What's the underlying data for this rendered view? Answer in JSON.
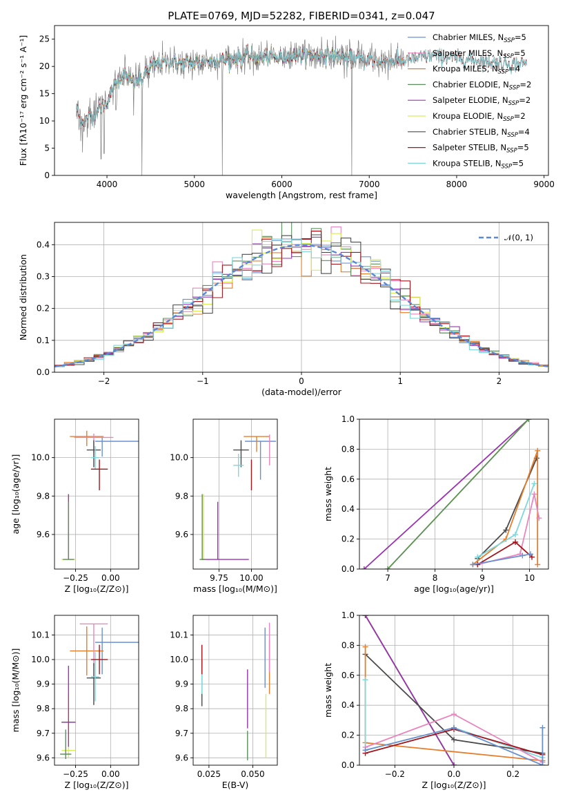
{
  "figure_title": "PLATE=0769, MJD=52282, FIBERID=0341, z=0.047",
  "chart_data": [
    {
      "id": "spectrum",
      "type": "line",
      "xlabel": "wavelength [Angstrom, rest frame]",
      "ylabel": "Flux [fλ10⁻¹⁷ erg cm⁻² s⁻¹ A⁻¹]",
      "xlim": [
        3400,
        9050
      ],
      "ylim": [
        0,
        27.5
      ],
      "xticks": [
        4000,
        5000,
        6000,
        7000,
        8000,
        9000
      ],
      "yticks": [
        0,
        5,
        10,
        15,
        20,
        25
      ],
      "grid": false,
      "legend_position": "top-right",
      "series": [
        {
          "name": "Chabrier MILES, N",
          "sub": "SSP",
          "tail": "=5",
          "color": "#6a8fcf",
          "range": [
            3650,
            7400
          ]
        },
        {
          "name": "Salpeter MILES, N",
          "sub": "SSP",
          "tail": "=5",
          "color": "#e885be",
          "range": [
            3650,
            7400
          ]
        },
        {
          "name": "Kroupa MILES, N",
          "sub": "SSP",
          "tail": "=4",
          "color": "#e57e2c",
          "range": [
            3650,
            7430
          ]
        },
        {
          "name": "Chabrier ELODIE, N",
          "sub": "SSP",
          "tail": "=2",
          "color": "#5b8f5b",
          "range": [
            3900,
            6800
          ]
        },
        {
          "name": "Salpeter ELODIE, N",
          "sub": "SSP",
          "tail": "=2",
          "color": "#9a33b0",
          "range": [
            3900,
            6800
          ]
        },
        {
          "name": "Kroupa ELODIE, N",
          "sub": "SSP",
          "tail": "=2",
          "color": "#d8ec5a",
          "range": [
            3900,
            6800
          ]
        },
        {
          "name": "Chabrier STELIB, N",
          "sub": "SSP",
          "tail": "=4",
          "color": "#4a4a4a",
          "range": [
            3650,
            8800
          ]
        },
        {
          "name": "Salpeter STELIB, N",
          "sub": "SSP",
          "tail": "=5",
          "color": "#a3141a",
          "range": [
            3650,
            8800
          ]
        },
        {
          "name": "Kroupa STELIB, N",
          "sub": "SSP",
          "tail": "=5",
          "color": "#7fd7dc",
          "range": [
            3650,
            8800
          ]
        }
      ],
      "data_color": "#808080",
      "continuum": {
        "x": [
          3650,
          3700,
          3800,
          3900,
          4000,
          4100,
          4200,
          4300,
          4400,
          4500,
          4700,
          4900,
          5100,
          5300,
          5600,
          5900,
          6200,
          6500,
          6800,
          7100,
          7400,
          7700,
          8000,
          8300,
          8600,
          8800
        ],
        "y": [
          12.5,
          10,
          10.5,
          12,
          13.5,
          17,
          18.5,
          17,
          17.5,
          20,
          21,
          20.5,
          21,
          21,
          22,
          21.5,
          22,
          22,
          21.5,
          21,
          21,
          22,
          21.5,
          21,
          20.5,
          20.5
        ]
      },
      "absorption_lines": [
        {
          "x": 3933,
          "y": 3
        },
        {
          "x": 3968,
          "y": 4
        },
        {
          "x": 4102,
          "y": 12
        },
        {
          "x": 4304,
          "y": 11
        },
        {
          "x": 4401,
          "y": 0
        },
        {
          "x": 5319,
          "y": 0
        },
        {
          "x": 6800,
          "y": 0
        },
        {
          "x": 7430,
          "y": 0
        }
      ]
    },
    {
      "id": "residuals",
      "type": "step",
      "xlabel": "(data-model)/error",
      "ylabel": "Normed distribution",
      "xlim": [
        -2.5,
        2.5
      ],
      "ylim": [
        0,
        0.47
      ],
      "xticks": [
        -2,
        -1,
        0,
        1,
        2
      ],
      "yticks": [
        0.0,
        0.1,
        0.2,
        0.3,
        0.4
      ],
      "grid": true,
      "legend_position": "top-right",
      "reference": {
        "name": "𝒩(0, 1)",
        "color": "#5b88d6"
      },
      "bin_width": 0.1
    },
    {
      "id": "age_vs_Z",
      "type": "errorbar",
      "xlabel": "Z [log₁₀(Z/Z⊙)]",
      "ylabel": "age  [log₁₀(age/yr)]",
      "xlim": [
        -0.4,
        0.2
      ],
      "ylim": [
        9.42,
        10.2
      ],
      "xticks": [
        -0.25,
        0.0
      ],
      "xtick_labels": [
        "−0.25",
        "0.00"
      ],
      "yticks": [
        9.6,
        9.8,
        10.0
      ],
      "grid": true,
      "points": [
        {
          "color": "#6a8fcf",
          "x": -0.06,
          "xerr": [
            0.05,
            0.26
          ],
          "y": 10.085,
          "yerr": [
            0.08,
            0.02
          ]
        },
        {
          "color": "#e57e2c",
          "x": -0.17,
          "xerr": [
            0.12,
            0.12
          ],
          "y": 10.11,
          "yerr": [
            0.05,
            0.03
          ]
        },
        {
          "color": "#e885be",
          "x": -0.12,
          "xerr": [
            0.14,
            0.14
          ],
          "y": 10.105,
          "yerr": [
            0.08,
            0.02
          ]
        },
        {
          "color": "#4a4a4a",
          "x": -0.12,
          "xerr": [
            0.05,
            0.05
          ],
          "y": 10.04,
          "yerr": [
            0.09,
            0.05
          ]
        },
        {
          "color": "#7fd7dc",
          "x": -0.11,
          "xerr": [
            0.03,
            0.03
          ],
          "y": 10.0,
          "yerr": [
            0.06,
            0.06
          ]
        },
        {
          "color": "#a3141a",
          "x": -0.08,
          "xerr": [
            0.06,
            0.06
          ],
          "y": 9.94,
          "yerr": [
            0.11,
            0.05
          ]
        },
        {
          "color": "#d8ec5a",
          "x": -0.3,
          "xerr": [
            0.05,
            0.05
          ],
          "y": 9.47,
          "yerr": [
            0.0,
            0.34
          ]
        },
        {
          "color": "#9a33b0",
          "x": -0.3,
          "xerr": [
            0.0,
            0.0
          ],
          "y": 9.47,
          "yerr": [
            0.0,
            0.34
          ]
        },
        {
          "color": "#5b8f5b",
          "x": -0.3,
          "xerr": [
            0.04,
            0.04
          ],
          "y": 9.47,
          "yerr": [
            0.0,
            0.3
          ]
        }
      ]
    },
    {
      "id": "age_vs_mass",
      "type": "errorbar",
      "xlabel": "mass [log₁₀(M/M⊙)]",
      "ylabel": "",
      "xlim": [
        9.55,
        10.2
      ],
      "ylim": [
        9.42,
        10.2
      ],
      "xticks": [
        9.75,
        10.0
      ],
      "xtick_labels": [
        "9.75",
        "10.00"
      ],
      "yticks": [
        9.6,
        9.8,
        10.0
      ],
      "grid": true,
      "points": [
        {
          "color": "#6a8fcf",
          "x": 10.07,
          "xerr": [
            0.12,
            0.12
          ],
          "y": 10.085,
          "yerr": [
            0.2,
            0.0
          ]
        },
        {
          "color": "#e57e2c",
          "x": 10.04,
          "xerr": [
            0.1,
            0.1
          ],
          "y": 10.11,
          "yerr": [
            0.08,
            0.0
          ]
        },
        {
          "color": "#e885be",
          "x": 10.14,
          "xerr": [
            0.0,
            0.0
          ],
          "y": 10.06,
          "yerr": [
            0.1,
            0.06
          ]
        },
        {
          "color": "#4a4a4a",
          "x": 9.92,
          "xerr": [
            0.06,
            0.06
          ],
          "y": 10.04,
          "yerr": [
            0.09,
            0.05
          ]
        },
        {
          "color": "#7fd7dc",
          "x": 9.9,
          "xerr": [
            0.04,
            0.04
          ],
          "y": 9.96,
          "yerr": [
            0.06,
            0.06
          ]
        },
        {
          "color": "#a3141a",
          "x": 10.0,
          "xerr": [
            0.0,
            0.0
          ],
          "y": 9.94,
          "yerr": [
            0.11,
            0.05
          ]
        },
        {
          "color": "#d8ec5a",
          "x": 9.63,
          "xerr": [
            0.02,
            0.0
          ],
          "y": 9.47,
          "yerr": [
            0.0,
            0.34
          ]
        },
        {
          "color": "#9a33b0",
          "x": 9.74,
          "xerr": [
            0.12,
            0.24
          ],
          "y": 9.47,
          "yerr": [
            0.0,
            0.3
          ]
        },
        {
          "color": "#5b8f5b",
          "x": 9.62,
          "xerr": [
            0.02,
            0.02
          ],
          "y": 9.47,
          "yerr": [
            0.0,
            0.34
          ]
        }
      ]
    },
    {
      "id": "weight_vs_age",
      "type": "line",
      "xlabel": "age  [log₁₀(age/yr)]",
      "ylabel": "mass weight",
      "xlim": [
        6.4,
        10.4
      ],
      "ylim": [
        0,
        1.0
      ],
      "xticks": [
        7,
        8,
        9,
        10
      ],
      "yticks": [
        0.0,
        0.2,
        0.4,
        0.6,
        0.8,
        1.0
      ],
      "grid": true,
      "series": [
        {
          "color": "#9a33b0",
          "x": [
            6.5,
            9.98
          ],
          "y": [
            0.0,
            1.0
          ]
        },
        {
          "color": "#d8ec5a",
          "x": [
            7.0,
            9.98
          ],
          "y": [
            0.0,
            1.0
          ]
        },
        {
          "color": "#5b8f5b",
          "x": [
            7.0,
            9.98
          ],
          "y": [
            0.0,
            1.0
          ]
        },
        {
          "color": "#4a4a4a",
          "x": [
            8.9,
            9.5,
            10.15
          ],
          "y": [
            0.07,
            0.26,
            0.74
          ]
        },
        {
          "color": "#e57e2c",
          "x": [
            8.8,
            9.5,
            10.17,
            10.17
          ],
          "y": [
            0.03,
            0.2,
            0.79,
            0.03
          ]
        },
        {
          "color": "#7fd7dc",
          "x": [
            8.9,
            9.7,
            10.1
          ],
          "y": [
            0.08,
            0.23,
            0.57
          ]
        },
        {
          "color": "#e885be",
          "x": [
            8.9,
            9.8,
            10.1,
            10.2
          ],
          "y": [
            0.03,
            0.1,
            0.5,
            0.34
          ]
        },
        {
          "color": "#a3141a",
          "x": [
            8.9,
            9.7,
            10.05
          ],
          "y": [
            0.03,
            0.18,
            0.08
          ]
        },
        {
          "color": "#6a8fcf",
          "x": [
            8.8,
            9.85,
            10.02
          ],
          "y": [
            0.03,
            0.09,
            0.1
          ]
        }
      ]
    },
    {
      "id": "mass_vs_Z",
      "type": "errorbar",
      "xlabel": "Z [log₁₀(Z/Z⊙)]",
      "ylabel": "mass [log₁₀(M/M⊙)]",
      "xlim": [
        -0.4,
        0.2
      ],
      "ylim": [
        9.57,
        10.18
      ],
      "xticks": [
        -0.25,
        0.0
      ],
      "xtick_labels": [
        "−0.25",
        "0.00"
      ],
      "yticks": [
        9.6,
        9.7,
        9.8,
        9.9,
        10.0,
        10.1
      ],
      "ytick_labels": [
        "9.6",
        "9.7",
        "9.8",
        "9.9",
        "10.0",
        "10.1"
      ],
      "grid": true,
      "points": [
        {
          "color": "#6a8fcf",
          "x": -0.06,
          "xerr": [
            0.05,
            0.26
          ],
          "y": 10.07,
          "yerr": [
            0.13,
            0.06
          ]
        },
        {
          "color": "#e57e2c",
          "x": -0.17,
          "xerr": [
            0.12,
            0.12
          ],
          "y": 10.035,
          "yerr": [
            0.1,
            0.1
          ]
        },
        {
          "color": "#e885be",
          "x": -0.12,
          "xerr": [
            0.1,
            0.1
          ],
          "y": 10.145,
          "yerr": [
            0.17,
            0.0
          ]
        },
        {
          "color": "#4a4a4a",
          "x": -0.12,
          "xerr": [
            0.05,
            0.05
          ],
          "y": 9.925,
          "yerr": [
            0.11,
            0.06
          ]
        },
        {
          "color": "#7fd7dc",
          "x": -0.11,
          "xerr": [
            0.03,
            0.03
          ],
          "y": 9.93,
          "yerr": [
            0.1,
            0.1
          ]
        },
        {
          "color": "#a3141a",
          "x": -0.08,
          "xerr": [
            0.06,
            0.06
          ],
          "y": 10.0,
          "yerr": [
            0.06,
            0.06
          ]
        },
        {
          "color": "#d8ec5a",
          "x": -0.3,
          "xerr": [
            0.05,
            0.05
          ],
          "y": 9.63,
          "yerr": [
            0.03,
            0.23
          ]
        },
        {
          "color": "#9a33b0",
          "x": -0.3,
          "xerr": [
            0.05,
            0.05
          ],
          "y": 9.745,
          "yerr": [
            0.1,
            0.23
          ]
        },
        {
          "color": "#5b8f5b",
          "x": -0.32,
          "xerr": [
            0.04,
            0.04
          ],
          "y": 9.615,
          "yerr": [
            0.02,
            0.1
          ]
        }
      ]
    },
    {
      "id": "mass_vs_ebv",
      "type": "errorbar",
      "xlabel": "E(B-V)",
      "ylabel": "",
      "xlim": [
        0.016,
        0.064
      ],
      "ylim": [
        9.57,
        10.18
      ],
      "xticks": [
        0.025,
        0.05
      ],
      "xtick_labels": [
        "0.025",
        "0.050"
      ],
      "yticks": [
        9.6,
        9.7,
        9.8,
        9.9,
        10.0,
        10.1
      ],
      "ytick_labels": [
        "9.6",
        "9.7",
        "9.8",
        "9.9",
        "10.0",
        "10.1"
      ],
      "grid": true,
      "points": [
        {
          "color": "#6a8fcf",
          "x": 0.057,
          "xerr": [
            0,
            0
          ],
          "y": 10.005,
          "yerr": [
            0.12,
            0.125
          ]
        },
        {
          "color": "#e57e2c",
          "x": 0.0595,
          "xerr": [
            0,
            0
          ],
          "y": 9.99,
          "yerr": [
            0.13,
            0.09
          ]
        },
        {
          "color": "#e885be",
          "x": 0.0595,
          "xerr": [
            0,
            0
          ],
          "y": 10.05,
          "yerr": [
            0.1,
            0.1
          ]
        },
        {
          "color": "#4a4a4a",
          "x": 0.021,
          "xerr": [
            0,
            0
          ],
          "y": 9.9,
          "yerr": [
            0.09,
            0.1
          ]
        },
        {
          "color": "#7fd7dc",
          "x": 0.021,
          "xerr": [
            0,
            0
          ],
          "y": 9.92,
          "yerr": [
            0.06,
            0.05
          ]
        },
        {
          "color": "#a3141a",
          "x": 0.021,
          "xerr": [
            0,
            0
          ],
          "y": 10.0,
          "yerr": [
            0.06,
            0.06
          ]
        },
        {
          "color": "#d8ec5a",
          "x": 0.0575,
          "xerr": [
            0,
            0
          ],
          "y": 9.73,
          "yerr": [
            0.13,
            0.13
          ]
        },
        {
          "color": "#9a33b0",
          "x": 0.047,
          "xerr": [
            0,
            0
          ],
          "y": 9.84,
          "yerr": [
            0.12,
            0.12
          ]
        },
        {
          "color": "#5b8f5b",
          "x": 0.047,
          "xerr": [
            0,
            0
          ],
          "y": 9.65,
          "yerr": [
            0.06,
            0.06
          ]
        }
      ]
    },
    {
      "id": "weight_vs_Z",
      "type": "line",
      "xlabel": "Z [log₁₀(Z/Z⊙)]",
      "ylabel": "mass weight",
      "xlim": [
        -0.32,
        0.32
      ],
      "ylim": [
        0,
        1.0
      ],
      "xticks": [
        -0.2,
        0.0,
        0.2
      ],
      "xtick_labels": [
        "−0.2",
        "0.0",
        "0.2"
      ],
      "yticks": [
        0.0,
        0.2,
        0.4,
        0.6,
        0.8,
        1.0
      ],
      "grid": true,
      "series": [
        {
          "color": "#d8ec5a",
          "x": [
            -0.3,
            0.0
          ],
          "y": [
            1.0,
            0.0
          ]
        },
        {
          "color": "#5b8f5b",
          "x": [
            -0.3,
            0.0
          ],
          "y": [
            1.0,
            0.0
          ]
        },
        {
          "color": "#9a33b0",
          "x": [
            -0.3,
            0.0
          ],
          "y": [
            1.0,
            0.0
          ]
        },
        {
          "color": "#4a4a4a",
          "x": [
            -0.3,
            0.0,
            0.3
          ],
          "y": [
            0.74,
            0.17,
            0.08
          ]
        },
        {
          "color": "#e57e2c",
          "x": [
            -0.3,
            -0.3,
            0.3
          ],
          "y": [
            0.79,
            0.15,
            0.03
          ]
        },
        {
          "color": "#7fd7dc",
          "x": [
            -0.3,
            -0.3,
            0.0,
            0.3
          ],
          "y": [
            0.57,
            0.1,
            0.25,
            0.05
          ]
        },
        {
          "color": "#e885be",
          "x": [
            -0.3,
            0.0,
            0.3
          ],
          "y": [
            0.12,
            0.34,
            0.02
          ]
        },
        {
          "color": "#a3141a",
          "x": [
            -0.3,
            0.0,
            0.3
          ],
          "y": [
            0.08,
            0.24,
            0.07
          ]
        },
        {
          "color": "#6a8fcf",
          "x": [
            -0.3,
            0.0,
            0.3,
            0.3
          ],
          "y": [
            0.1,
            0.25,
            0.0,
            0.25
          ]
        }
      ]
    }
  ]
}
